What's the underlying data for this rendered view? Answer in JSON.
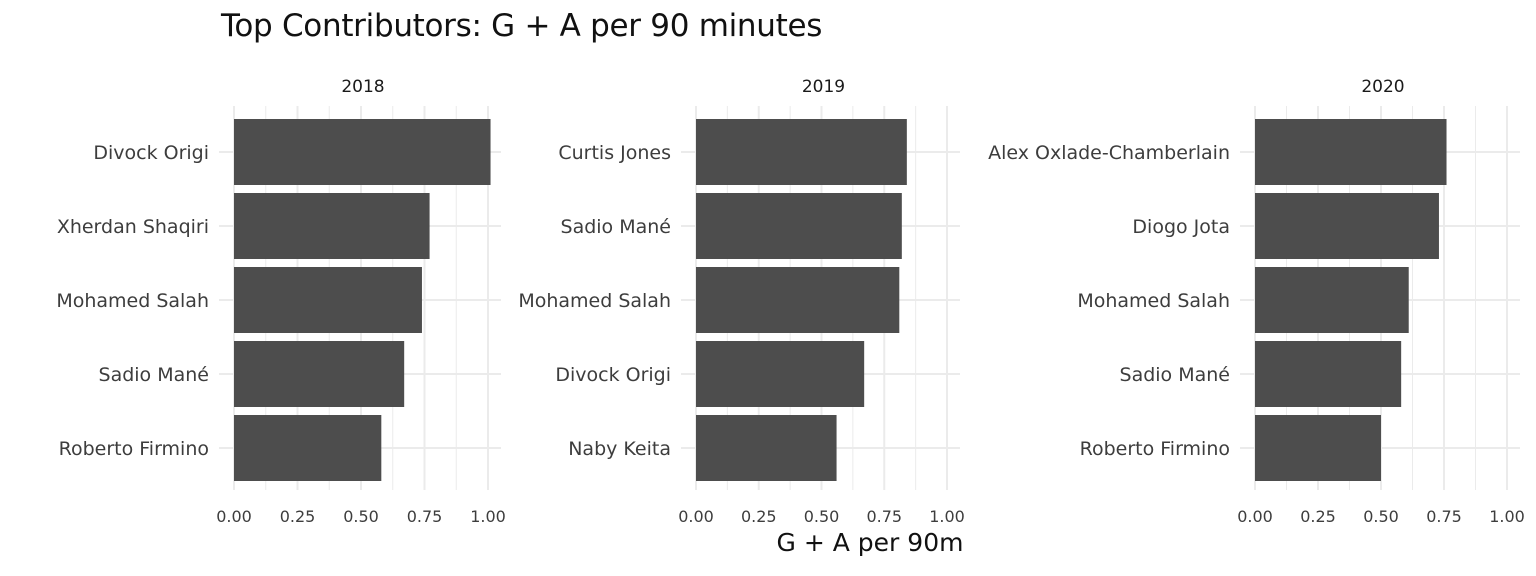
{
  "chart_data": {
    "type": "bar",
    "orientation": "horizontal",
    "title": "Top Contributors: G + A per 90 minutes",
    "xlabel": "G + A per 90m",
    "ylabel": "",
    "xlim": [
      0,
      1.0
    ],
    "x_ticks": [
      "0.00",
      "0.25",
      "0.50",
      "0.75",
      "1.00"
    ],
    "grid": true,
    "bar_color": "#4d4d4d",
    "grid_color": "#ebebeb",
    "facets": [
      {
        "label": "2018",
        "categories": [
          "Divock Origi",
          "Xherdan Shaqiri",
          "Mohamed Salah",
          "Sadio Mané",
          "Roberto Firmino"
        ],
        "values": [
          1.01,
          0.77,
          0.74,
          0.67,
          0.58
        ]
      },
      {
        "label": "2019",
        "categories": [
          "Curtis Jones",
          "Sadio Mané",
          "Mohamed Salah",
          "Divock Origi",
          "Naby Keita"
        ],
        "values": [
          0.84,
          0.82,
          0.81,
          0.67,
          0.56
        ]
      },
      {
        "label": "2020",
        "categories": [
          "Alex Oxlade-Chamberlain",
          "Diogo Jota",
          "Mohamed Salah",
          "Sadio Mané",
          "Roberto Firmino"
        ],
        "values": [
          0.76,
          0.73,
          0.61,
          0.58,
          0.5
        ]
      }
    ]
  }
}
